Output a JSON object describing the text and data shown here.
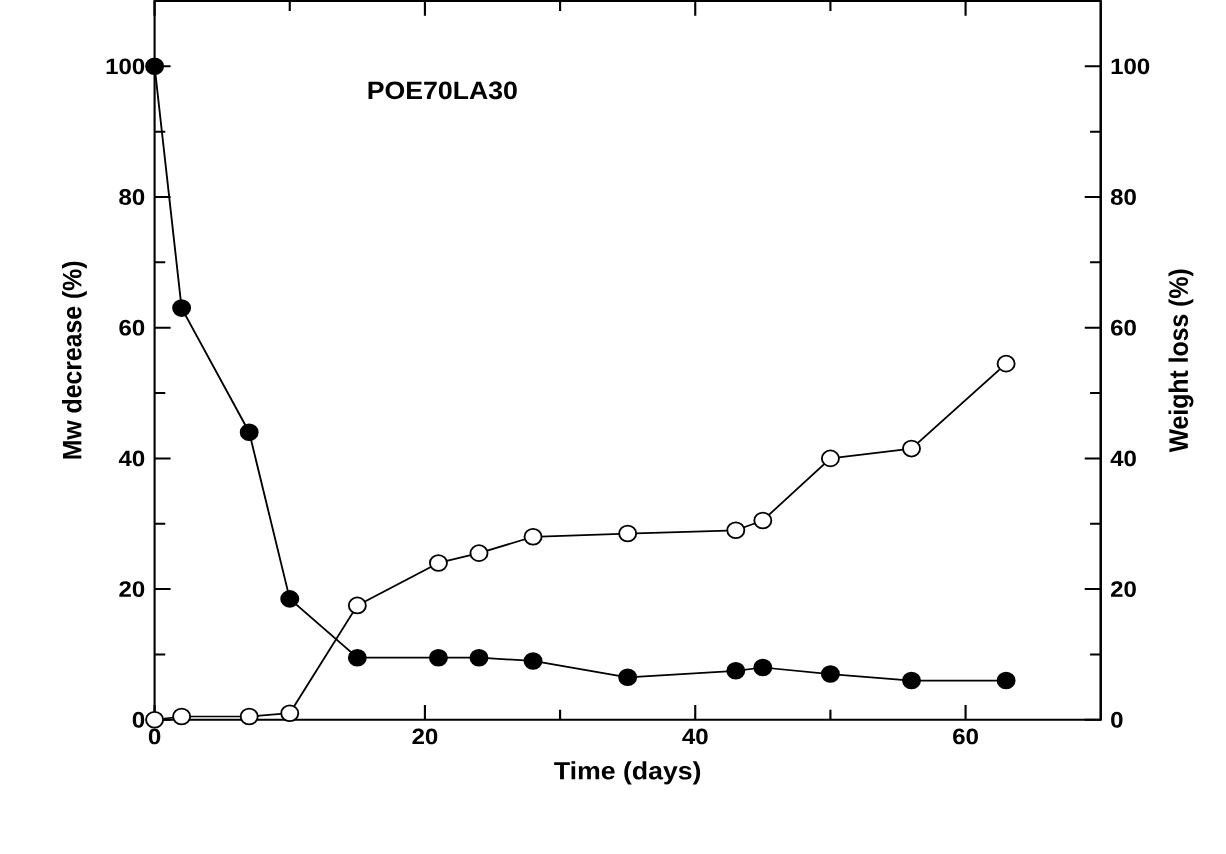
{
  "chart_data": {
    "type": "line",
    "title": "POE70LA30",
    "xlabel": "Time (days)",
    "ylabel": "Mw decrease (%)",
    "y2label": "Weight loss (%)",
    "marker": "circle",
    "xlim": [
      0,
      70
    ],
    "xticks": [
      0,
      20,
      40,
      60
    ],
    "ylim": [
      0,
      110
    ],
    "yticks": [
      0,
      20,
      40,
      60,
      80,
      100
    ],
    "y2lim": [
      0,
      110
    ],
    "y2ticks": [
      0,
      20,
      40,
      60,
      80,
      100
    ],
    "series": [
      {
        "color": "#000000",
        "x": [
          0,
          2,
          7,
          10,
          15,
          21,
          24,
          28,
          35,
          43,
          45,
          50,
          56,
          63
        ],
        "values": [
          100,
          63,
          44,
          18.5,
          9.5,
          9.5,
          9.5,
          9,
          6.5,
          7.5,
          8,
          7,
          6,
          6
        ]
      },
      {
        "color": "#ffffff",
        "axis": "y2",
        "x": [
          0,
          2,
          7,
          10,
          15,
          21,
          24,
          28,
          35,
          43,
          45,
          50,
          56,
          63
        ],
        "values": [
          0,
          0.5,
          0.5,
          1,
          17.5,
          24,
          25.5,
          28,
          28.5,
          29,
          30.5,
          40,
          41.5,
          54.5
        ]
      }
    ]
  }
}
